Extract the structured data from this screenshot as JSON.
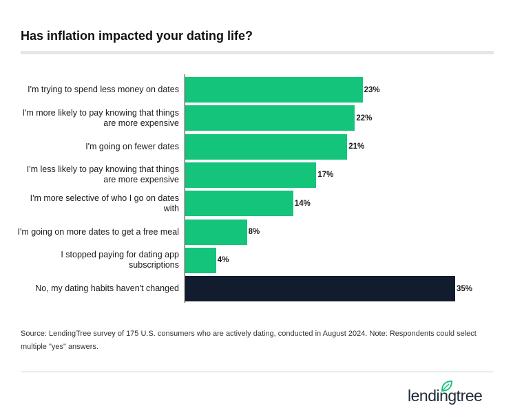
{
  "chart_data": {
    "type": "bar",
    "orientation": "horizontal",
    "title": "Has inflation impacted your dating life?",
    "categories": [
      "I'm trying to spend less money on dates",
      "I'm more likely to pay knowing that things are more expensive",
      "I'm going on fewer dates",
      "I'm less likely to pay knowing that things are more expensive",
      "I'm more selective of who I go on dates with",
      "I'm going on more dates to get a free meal",
      "I stopped paying for dating app subscriptions",
      "No, my dating habits haven't changed"
    ],
    "values": [
      23,
      22,
      21,
      17,
      14,
      8,
      4,
      35
    ],
    "value_labels": [
      "23%",
      "22%",
      "21%",
      "17%",
      "14%",
      "8%",
      "4%",
      "35%"
    ],
    "colors": [
      "#14c47a",
      "#14c47a",
      "#14c47a",
      "#14c47a",
      "#14c47a",
      "#14c47a",
      "#14c47a",
      "#111d2e"
    ],
    "source": "Source: LendingTree survey of 175 U.S. consumers who are actively dating, conducted in August 2024. Note: Respondents could select multiple \"yes\" answers.",
    "logo": "lendingtree"
  }
}
